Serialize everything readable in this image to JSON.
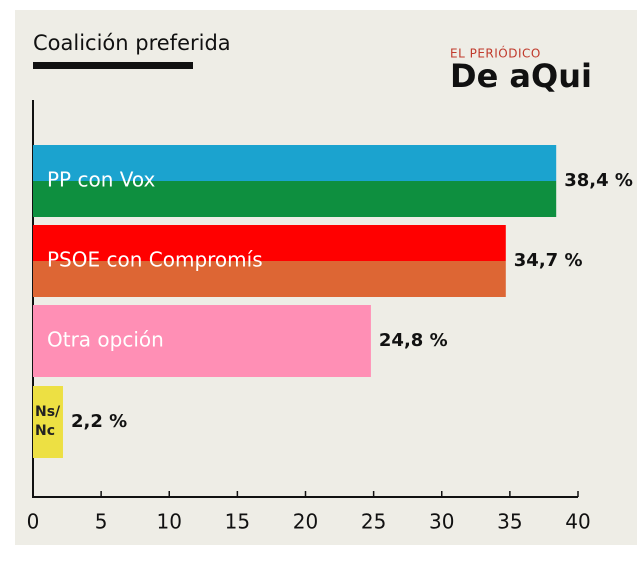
{
  "chart_data": {
    "type": "barh",
    "title": "Coalición preferida",
    "categories": [
      "PP con Vox",
      "PSOE con Compromís",
      "Otra opción",
      [
        "Ns/",
        "Nc"
      ]
    ],
    "values": [
      38.4,
      34.7,
      24.8,
      2.2
    ],
    "value_labels": [
      "38,4 %",
      "34,7 %",
      "24,8 %",
      "2,2 %"
    ],
    "colors": [
      [
        "#1ba3cf",
        "#0e8f3f"
      ],
      [
        "#ff0000",
        "#dd6634"
      ],
      [
        "#ff8fb5"
      ],
      [
        "#ede043"
      ]
    ],
    "xlim": [
      0,
      40
    ],
    "xticks": [
      0,
      5,
      10,
      15,
      20,
      25,
      30,
      35,
      40
    ]
  },
  "logo": {
    "top": "EL PERIÓDICO",
    "bottom": "De aQui"
  }
}
